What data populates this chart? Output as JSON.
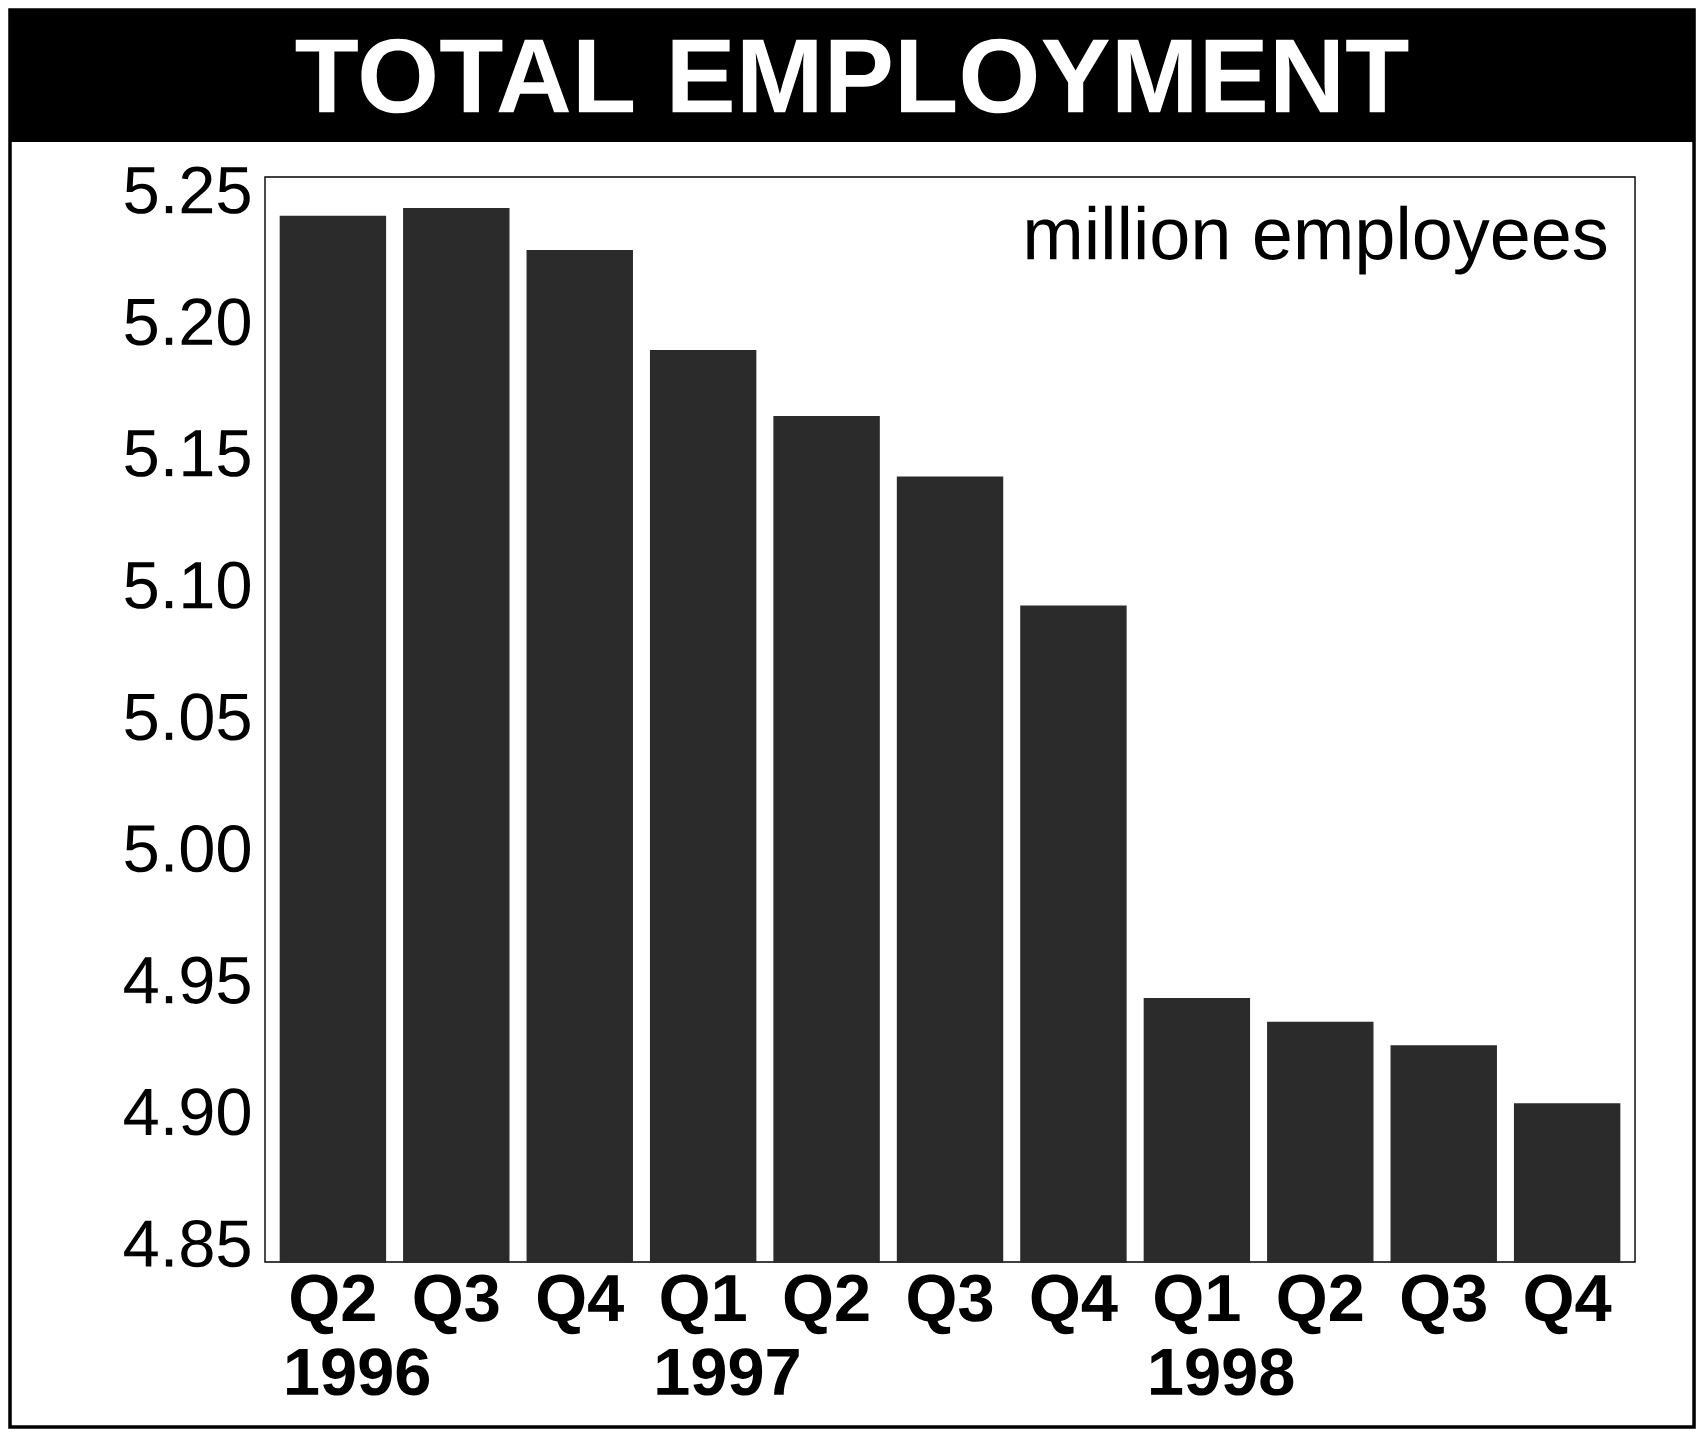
{
  "chart_data": {
    "type": "bar",
    "title": "TOTAL EMPLOYMENT",
    "categories": [
      "Q2 1996",
      "Q3",
      "Q4",
      "Q1 1997",
      "Q2",
      "Q3",
      "Q4",
      "Q1 1998",
      "Q2",
      "Q3",
      "Q4"
    ],
    "values": [
      5.24,
      5.243,
      5.227,
      5.189,
      5.164,
      5.141,
      5.092,
      4.943,
      4.934,
      4.925,
      4.903
    ],
    "color": "#2b2b2b",
    "ylim": [
      4.843,
      5.255
    ],
    "yticks": [
      4.85,
      {
        "value": 4.9,
        "label": "4.90"
      },
      4.95,
      {
        "value": 5.0,
        "label": "5.00"
      },
      5.05,
      {
        "value": 5.1,
        "label": "5.10"
      },
      5.15,
      {
        "value": 5.2,
        "label": "5.20"
      },
      5.25
    ],
    "annotations": [
      "million employees"
    ]
  }
}
